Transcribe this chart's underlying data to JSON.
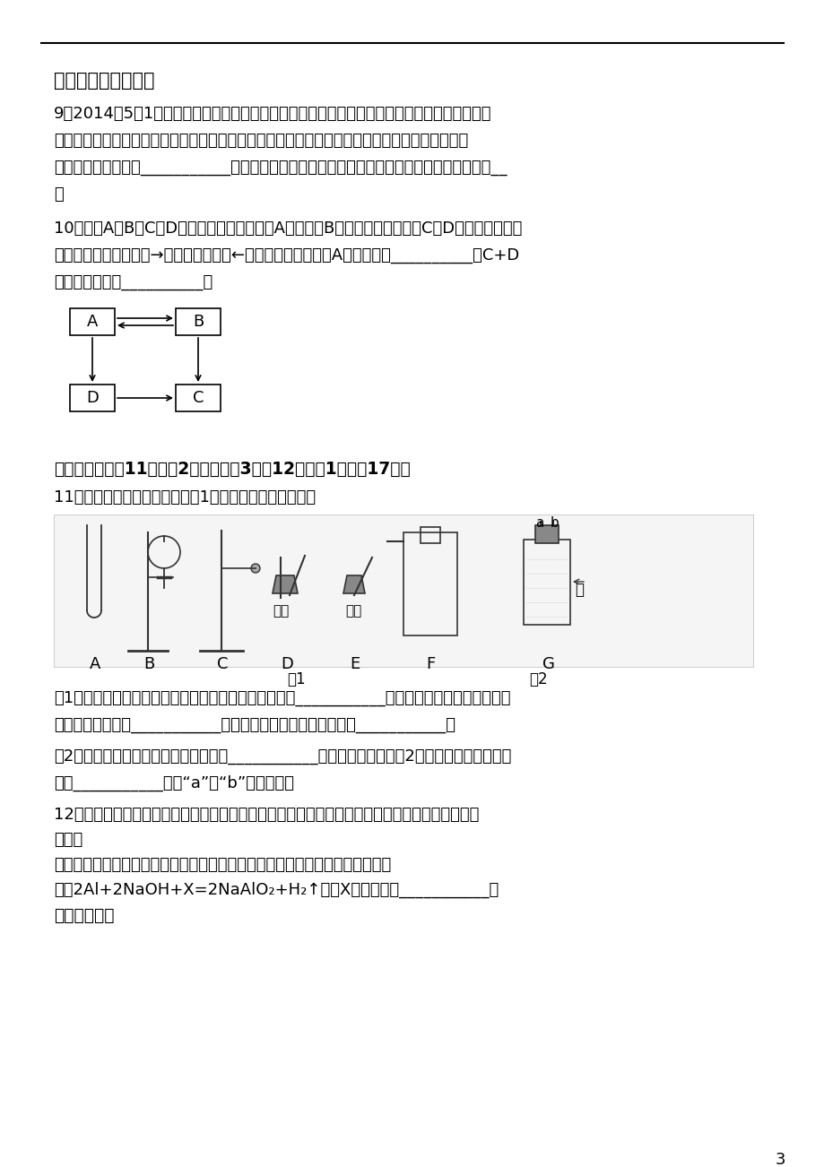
{
  "bg_color": "#ffffff",
  "text_color": "#000000",
  "line_color": "#000000",
  "page_number": "3",
  "section3_title": "三、简答题与推断题",
  "q9_lines": [
    "9．2014年5月1日长沙橘子洲恢复节假日燃放烟花活动，传统烟花爆竹的主要成分是黑火药．黑",
    "火药由硫磺、木炭粉、霐酸鯨、氯酸鯨等成分组成．目前燃放的是环保烟花，请你判断制作环保烟",
    "花会减少黑火药中的___________成分（任写出一种成分）．你对橘子洲重新燃放烟花的看法是__",
    "．"
  ],
  "q10_lines": [
    "10．已知A、B、C、D是中学化学常见物质，A为单质，B是光合作用的原料，C、D为氧化物，他们",
    "之间的转化关系如图（→表示相互转化，←表示相互反应）．则A的化学式为__________，C+D",
    "的化学方程式为__________．"
  ],
  "section4_title": "四、实验探究（11题每空2分，方程式3分，12题每空1分，共17分）",
  "q11_line1": "11．实验室部分仸器或装置如图1所示，请回答下列问题：",
  "q11_p1_lines": [
    "（1）若要组装一套二氧化碳的发生装置，可选择图中的___________（填仸器下方的字母），收集",
    "装置可选用图中的___________，制取二氧化碳的化学方程式为___________．"
  ],
  "q11_p2_lines": [
    "（2）用该发生装置还可以制取的气体是___________（填一种）．若用图2所示装置收集该气体，",
    "应从___________（填“a”或“b”）端导入．"
  ],
  "q12_lines": [
    "12．已知某合金样品中可能含有铝、铁、铜中的两种或三种．某小组同学对该合金样品的成分进行",
    "探究．"
  ],
  "q12_ref_line": "查阅资料】铝与氢氧化锹溶液可以发生反应，而铁、铜不与氢氧化锹溶液反应．",
  "q12_eq_line": "已知2Al+2NaOH+X=2NaAlO₂+H₂↑，则X的化学式为___________．",
  "q12_exp_title": "《探究实验》"
}
